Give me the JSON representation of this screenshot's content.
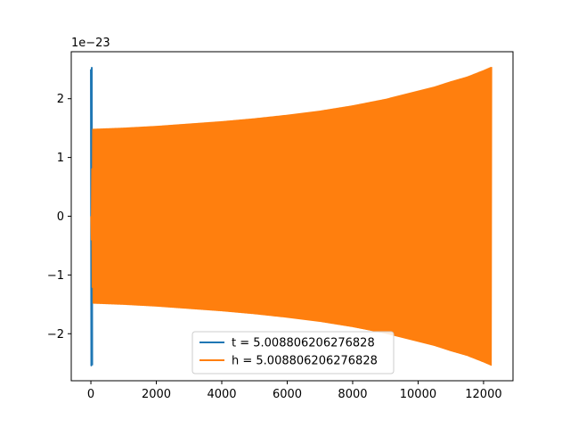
{
  "chart_data": {
    "type": "line",
    "xlabel": "",
    "ylabel": "",
    "y_scale_note": "1e−23",
    "xlim": [
      -600,
      12900
    ],
    "ylim": [
      -2.8,
      2.8
    ],
    "x_ticks": [
      0,
      2000,
      4000,
      6000,
      8000,
      10000,
      12000
    ],
    "x_tick_labels": [
      "0",
      "2000",
      "4000",
      "6000",
      "8000",
      "10000",
      "12000"
    ],
    "y_ticks": [
      -2,
      -1,
      0,
      1,
      2
    ],
    "y_tick_labels": [
      "−2",
      "−1",
      "0",
      "1",
      "2"
    ],
    "grid": false,
    "legend_placement": "bottom-center",
    "series": [
      {
        "name": "t = 5.008806206276828",
        "color": "#1f77b4",
        "kind": "oscillation-envelope",
        "x": [
          0,
          20,
          40,
          50
        ],
        "upper": [
          2.5,
          2.53,
          2.52,
          2.5
        ],
        "lower": [
          -2.52,
          -2.55,
          -2.54,
          -2.5
        ]
      },
      {
        "name": "h = 5.008806206276828",
        "color": "#ff7f0e",
        "kind": "oscillation-envelope",
        "x": [
          0,
          50,
          1000,
          2000,
          3000,
          4000,
          5000,
          6000,
          7000,
          8000,
          9000,
          10000,
          10500,
          11000,
          11500,
          12000,
          12250
        ],
        "upper": [
          0.0,
          1.48,
          1.5,
          1.53,
          1.57,
          1.61,
          1.66,
          1.72,
          1.79,
          1.88,
          1.99,
          2.13,
          2.2,
          2.29,
          2.37,
          2.48,
          2.54
        ],
        "lower": [
          0.0,
          -1.48,
          -1.5,
          -1.53,
          -1.57,
          -1.61,
          -1.66,
          -1.72,
          -1.79,
          -1.88,
          -1.99,
          -2.13,
          -2.2,
          -2.29,
          -2.37,
          -2.48,
          -2.54
        ]
      }
    ]
  }
}
